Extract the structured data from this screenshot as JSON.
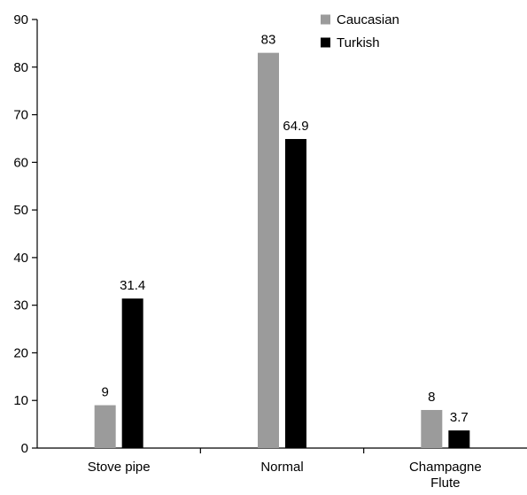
{
  "chart_data": {
    "type": "bar",
    "categories": [
      [
        "Stove pipe"
      ],
      [
        "Normal"
      ],
      [
        "Champagne",
        "Flute"
      ]
    ],
    "series": [
      {
        "name": "Caucasian",
        "color": "#9b9b9b",
        "values": [
          9,
          83,
          8
        ]
      },
      {
        "name": "Turkish",
        "color": "#000000",
        "values": [
          31.4,
          64.9,
          3.7
        ]
      }
    ],
    "data_labels": [
      [
        "9",
        "83",
        "8"
      ],
      [
        "31.4",
        "64.9",
        "3.7"
      ]
    ],
    "ylim": [
      0,
      90
    ],
    "yticks": [
      0,
      10,
      20,
      30,
      40,
      50,
      60,
      70,
      80,
      90
    ],
    "xlabel": "",
    "ylabel": "",
    "title": "",
    "grid": false,
    "legend_position": "top-right"
  }
}
